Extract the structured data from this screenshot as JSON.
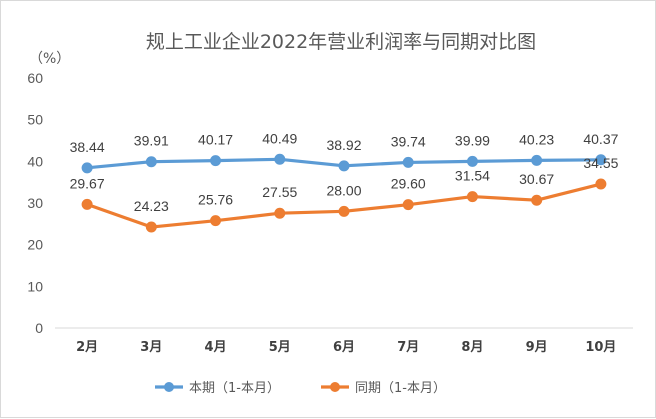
{
  "chart_data": {
    "type": "line",
    "title": "规上工业企业2022年营业利润率与同期对比图",
    "ylabel": "（%）",
    "xlabel": "",
    "categories": [
      "2月",
      "3月",
      "4月",
      "5月",
      "6月",
      "7月",
      "8月",
      "9月",
      "10月"
    ],
    "ylim": [
      0,
      60
    ],
    "yticks": [
      "0",
      "10",
      "20",
      "30",
      "40",
      "50",
      "60"
    ],
    "grid": false,
    "legend_position": "bottom",
    "series": [
      {
        "name": "本期（1-本月）",
        "color": "#5B9BD5",
        "values": [
          38.44,
          39.91,
          40.17,
          40.49,
          38.92,
          39.74,
          39.99,
          40.23,
          40.37
        ],
        "labels": [
          "38.44",
          "39.91",
          "40.17",
          "40.49",
          "38.92",
          "39.74",
          "39.99",
          "40.23",
          "40.37"
        ]
      },
      {
        "name": "同期（1-本月）",
        "color": "#ED7D31",
        "values": [
          29.67,
          24.23,
          25.76,
          27.55,
          28.0,
          29.6,
          31.54,
          30.67,
          34.55
        ],
        "labels": [
          "29.67",
          "24.23",
          "25.76",
          "27.55",
          "28.00",
          "29.60",
          "31.54",
          "30.67",
          "34.55"
        ]
      }
    ]
  }
}
